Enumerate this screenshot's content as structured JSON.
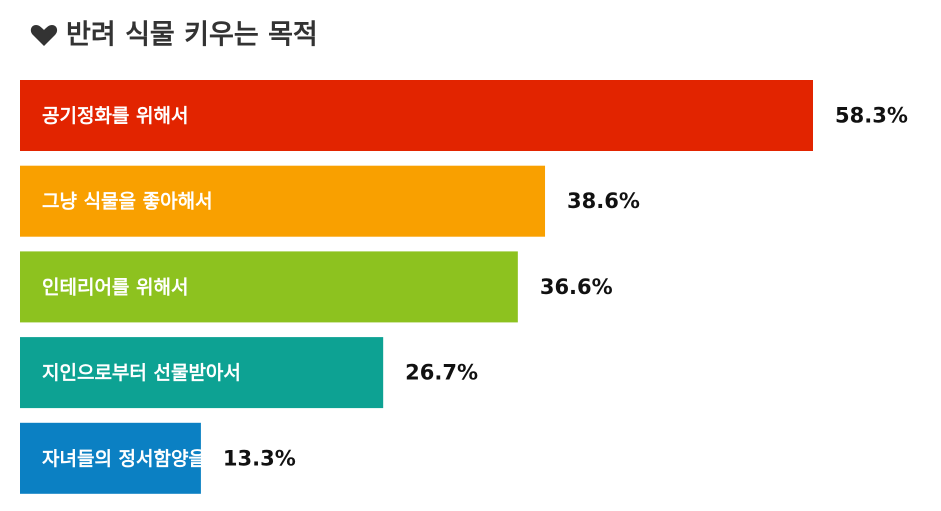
{
  "chart_data": {
    "type": "bar",
    "orientation": "horizontal",
    "title": "반려 식물 키우는 목적",
    "categories": [
      "공기정화를 위해서",
      "그냥 식물을 좋아해서",
      "인테리어를 위해서",
      "지인으로부터 선물받아서",
      "자녀들의 정서함양을 위해서"
    ],
    "values": [
      58.3,
      38.6,
      36.6,
      26.7,
      13.3
    ],
    "value_labels": [
      "58.3%",
      "38.6%",
      "36.6%",
      "26.7%",
      "13.3%"
    ],
    "colors": [
      "#e22400",
      "#f9a000",
      "#8dc21f",
      "#0da293",
      "#0b80c3"
    ]
  }
}
